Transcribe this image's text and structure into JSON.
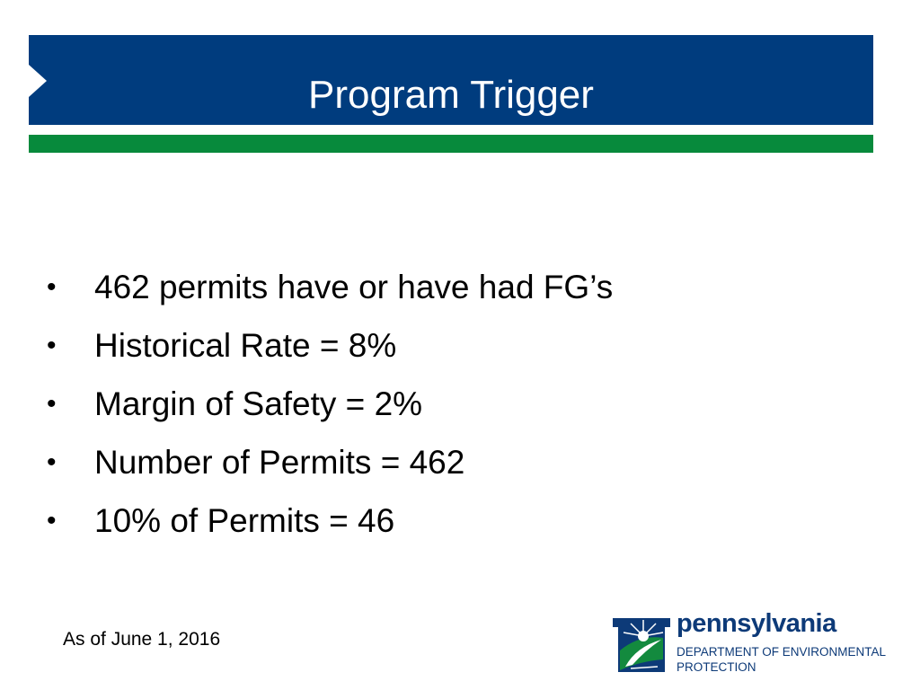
{
  "header": {
    "title": "Program Trigger"
  },
  "bullets": [
    "462 permits have or have had FG’s",
    "Historical Rate = 8%",
    "Margin of Safety = 2%",
    "Number of Permits = 462",
    "10% of Permits = 46"
  ],
  "footer": {
    "note": "As of June 1, 2016"
  },
  "logo": {
    "name": "pennsylvania",
    "line1": "DEPARTMENT OF ENVIRONMENTAL",
    "line2": "PROTECTION"
  },
  "colors": {
    "title_bar": "#003c7e",
    "accent_bar": "#078a3c"
  }
}
